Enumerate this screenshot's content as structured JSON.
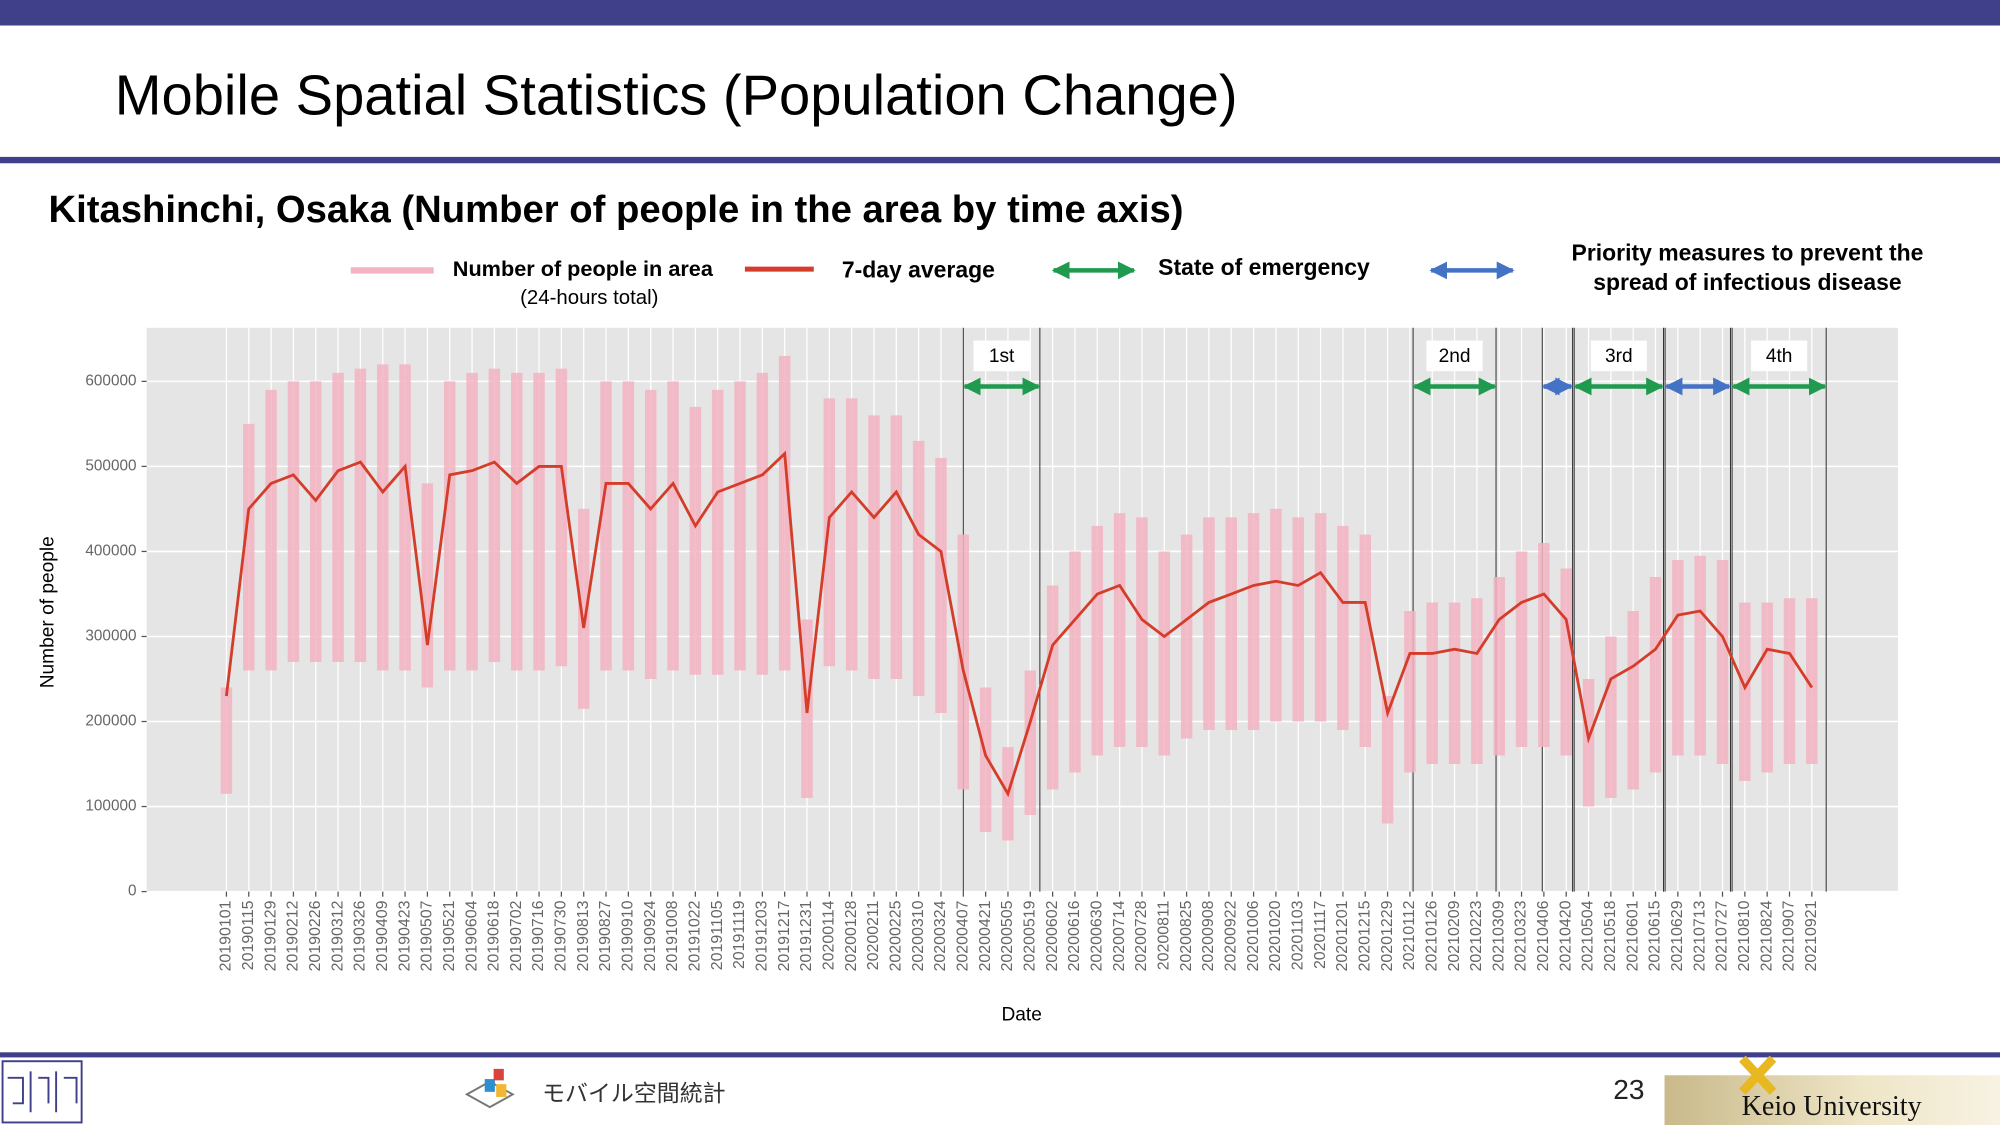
{
  "slide": {
    "title": "Mobile Spatial Statistics (Population Change)",
    "page_number": "23",
    "footer_logo": "モバイル空間統計",
    "university": "Keio University"
  },
  "chart_data": {
    "type": "line",
    "title": "Kitashinchi, Osaka (Number of people in the area by time axis)",
    "x_label": "Date",
    "y_label": "Number of people",
    "x": [
      "20190101",
      "20190115",
      "20190129",
      "20190212",
      "20190226",
      "20190312",
      "20190326",
      "20190409",
      "20190423",
      "20190507",
      "20190521",
      "20190604",
      "20190618",
      "20190702",
      "20190716",
      "20190730",
      "20190813",
      "20190827",
      "20190910",
      "20190924",
      "20191008",
      "20191022",
      "20191105",
      "20191119",
      "20191203",
      "20191217",
      "20191231",
      "20200114",
      "20200128",
      "20200211",
      "20200225",
      "20200310",
      "20200324",
      "20200407",
      "20200421",
      "20200505",
      "20200519",
      "20200602",
      "20200616",
      "20200630",
      "20200714",
      "20200728",
      "20200811",
      "20200825",
      "20200908",
      "20200922",
      "20201006",
      "20201020",
      "20201103",
      "20201117",
      "20201201",
      "20201215",
      "20201229",
      "20210112",
      "20210126",
      "20210209",
      "20210223",
      "20210309",
      "20210323",
      "20210406",
      "20210420",
      "20210504",
      "20210518",
      "20210601",
      "20210615",
      "20210629",
      "20210713",
      "20210727",
      "20210810",
      "20210824",
      "20210907",
      "20210921"
    ],
    "xlim": [
      "20181112",
      "20211114"
    ],
    "ylim": [
      0,
      663000
    ],
    "yticks": [
      0,
      100000,
      200000,
      300000,
      400000,
      500000,
      600000
    ],
    "grid": true,
    "series": [
      {
        "name": "Number of people in area",
        "note": "(24-hours total)",
        "color": "#f4b3c2",
        "low": [
          115000,
          260000,
          260000,
          270000,
          270000,
          270000,
          270000,
          260000,
          260000,
          240000,
          260000,
          260000,
          270000,
          260000,
          260000,
          265000,
          215000,
          260000,
          260000,
          250000,
          260000,
          255000,
          255000,
          260000,
          255000,
          260000,
          110000,
          265000,
          260000,
          250000,
          250000,
          230000,
          210000,
          120000,
          70000,
          60000,
          90000,
          120000,
          140000,
          160000,
          170000,
          170000,
          160000,
          180000,
          190000,
          190000,
          190000,
          200000,
          200000,
          200000,
          190000,
          170000,
          80000,
          140000,
          150000,
          150000,
          150000,
          160000,
          170000,
          170000,
          160000,
          100000,
          110000,
          120000,
          140000,
          160000,
          160000,
          150000,
          130000,
          140000,
          150000,
          150000
        ],
        "high": [
          240000,
          550000,
          590000,
          600000,
          600000,
          610000,
          615000,
          620000,
          620000,
          480000,
          600000,
          610000,
          615000,
          610000,
          610000,
          615000,
          450000,
          600000,
          600000,
          590000,
          600000,
          570000,
          590000,
          600000,
          610000,
          630000,
          320000,
          580000,
          580000,
          560000,
          560000,
          530000,
          510000,
          420000,
          240000,
          170000,
          260000,
          360000,
          400000,
          430000,
          445000,
          440000,
          400000,
          420000,
          440000,
          440000,
          445000,
          450000,
          440000,
          445000,
          430000,
          420000,
          230000,
          330000,
          340000,
          340000,
          345000,
          370000,
          400000,
          410000,
          380000,
          250000,
          300000,
          330000,
          370000,
          390000,
          395000,
          390000,
          340000,
          340000,
          345000,
          345000
        ]
      },
      {
        "name": "7-day average",
        "color": "#d43d2a",
        "values": [
          230000,
          450000,
          480000,
          490000,
          460000,
          495000,
          505000,
          470000,
          500000,
          290000,
          490000,
          495000,
          505000,
          480000,
          500000,
          500000,
          310000,
          480000,
          480000,
          450000,
          480000,
          430000,
          470000,
          480000,
          490000,
          515000,
          210000,
          440000,
          470000,
          440000,
          470000,
          420000,
          400000,
          260000,
          160000,
          115000,
          200000,
          290000,
          320000,
          350000,
          360000,
          320000,
          300000,
          320000,
          340000,
          350000,
          360000,
          365000,
          360000,
          375000,
          340000,
          340000,
          210000,
          280000,
          280000,
          285000,
          280000,
          320000,
          340000,
          350000,
          320000,
          180000,
          250000,
          265000,
          285000,
          325000,
          330000,
          300000,
          240000,
          285000,
          280000,
          240000
        ]
      }
    ],
    "period_types": [
      {
        "lines": [
          "State of emergency"
        ],
        "color": "#1f9a4e"
      },
      {
        "lines": [
          "Priority measures to prevent the",
          "spread of infectious disease"
        ],
        "color": "#4472c4"
      }
    ],
    "periods": [
      {
        "label": "1st",
        "type": 0,
        "start": "20200407",
        "end": "20200525"
      },
      {
        "label": "2nd",
        "type": 0,
        "start": "20210114",
        "end": "20210307"
      },
      {
        "type": 1,
        "start": "20210405",
        "end": "20210424"
      },
      {
        "label": "3rd",
        "type": 0,
        "start": "20210425",
        "end": "20210620"
      },
      {
        "type": 1,
        "start": "20210621",
        "end": "20210801"
      },
      {
        "label": "4th",
        "type": 0,
        "start": "20210802",
        "end": "20210930"
      }
    ]
  }
}
